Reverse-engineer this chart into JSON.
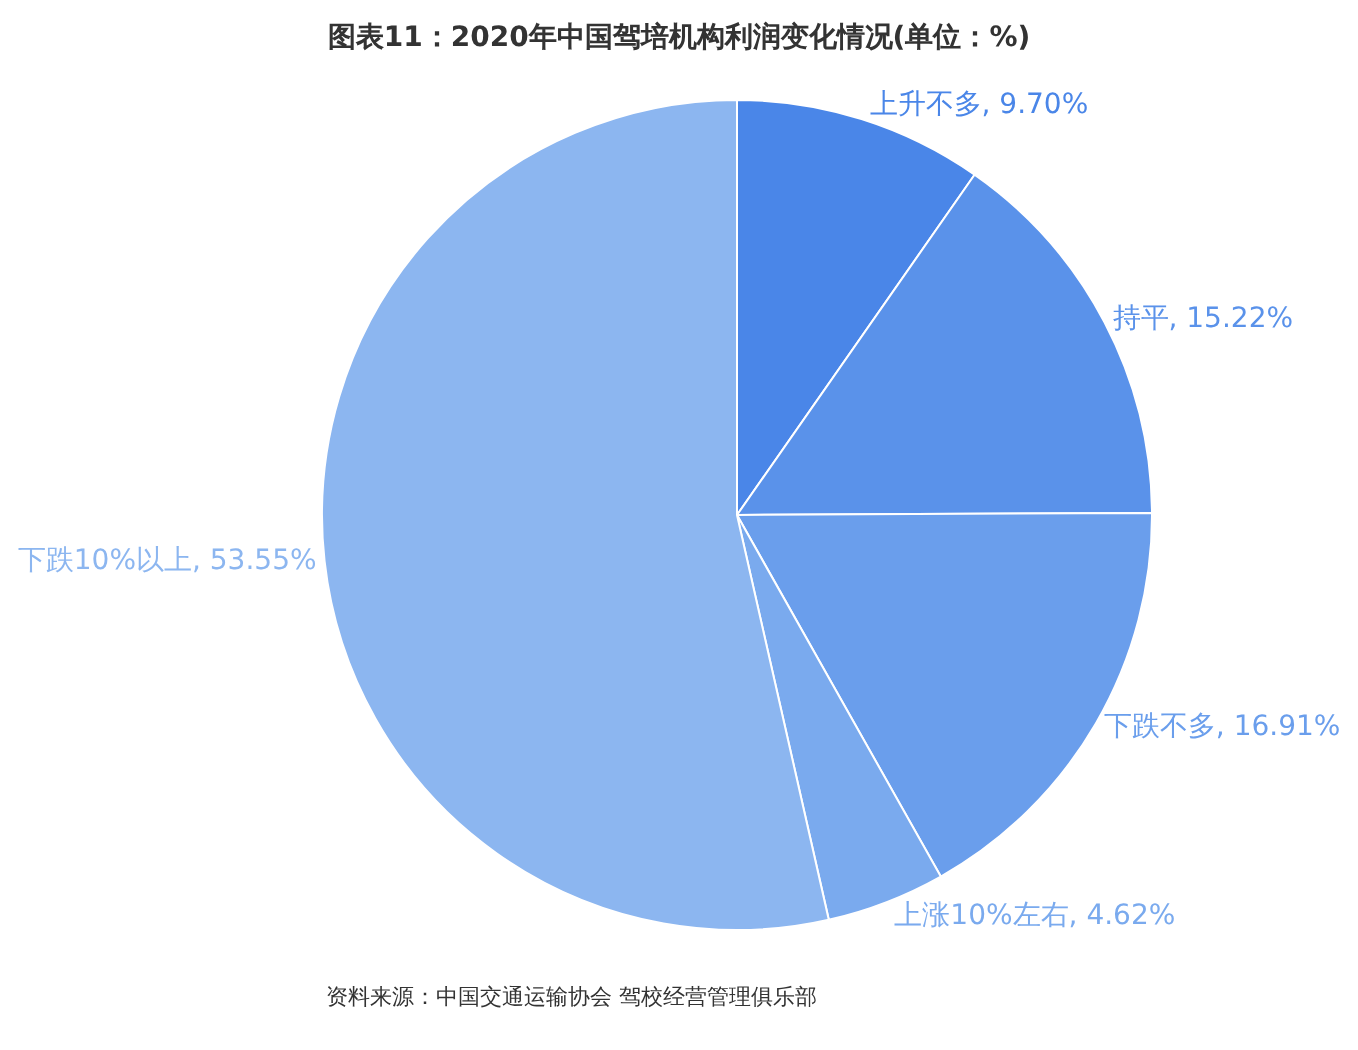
{
  "chart_data": {
    "type": "pie",
    "title": "图表11：2020年中国驾培机构利润变化情况(单位：%)",
    "categories": [
      "上升不多",
      "持平",
      "下跌不多",
      "上涨10%左右",
      "下跌10%以上"
    ],
    "values": [
      9.7,
      15.22,
      16.91,
      4.62,
      53.55
    ],
    "value_labels": [
      "9.70%",
      "15.22%",
      "16.91%",
      "4.62%",
      "53.55%"
    ],
    "colors": [
      "#4a86e8",
      "#5a92ea",
      "#6a9eec",
      "#7aaaee",
      "#8cb6f0"
    ],
    "legend": false,
    "annotations": [
      "资料来源：中国交通运输协会 驾校经营管理俱乐部"
    ]
  }
}
